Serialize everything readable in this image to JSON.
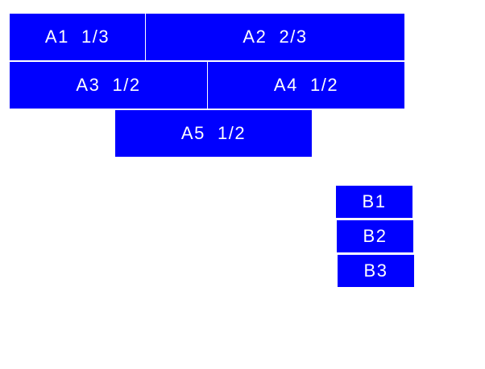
{
  "colors": {
    "box": "#0000ff",
    "text": "#ffffff",
    "background": "#ffffff"
  },
  "group_a": [
    {
      "label": "A1  1/3"
    },
    {
      "label": "A2  2/3"
    },
    {
      "label": "A3  1/2"
    },
    {
      "label": "A4  1/2"
    },
    {
      "label": "A5  1/2"
    }
  ],
  "group_b": [
    {
      "label": "B1"
    },
    {
      "label": "B2"
    },
    {
      "label": "B3"
    }
  ]
}
